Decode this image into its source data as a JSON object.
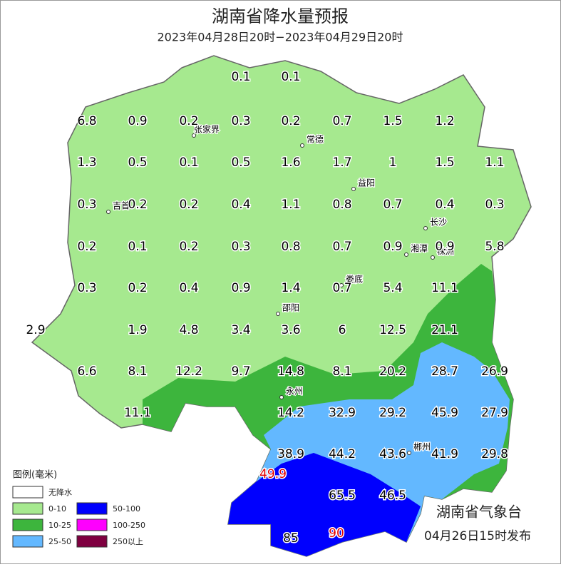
{
  "header": {
    "title": "湖南省降水量预报",
    "subtitle": "2023年04月28日20时−2023年04月29日20时"
  },
  "cities": [
    "张家界",
    "常德",
    "益阳",
    "吉首",
    "长沙",
    "湘潭",
    "株洲",
    "娄底",
    "邵阳",
    "永州",
    "郴州"
  ],
  "stations": [
    {
      "value": 0.1
    },
    {
      "value": 0.1
    },
    {
      "value": 6.8
    },
    {
      "value": 0.9
    },
    {
      "value": 0.2
    },
    {
      "value": 0.3
    },
    {
      "value": 0.2
    },
    {
      "value": 0.7
    },
    {
      "value": 1.5
    },
    {
      "value": 1.2
    },
    {
      "value": 1.3
    },
    {
      "value": 0.5
    },
    {
      "value": 0.1
    },
    {
      "value": 0.5
    },
    {
      "value": 1.6
    },
    {
      "value": 1.7
    },
    {
      "value": 1
    },
    {
      "value": 1.5
    },
    {
      "value": 1.1
    },
    {
      "value": 0.3
    },
    {
      "value": 0.2
    },
    {
      "value": 0.2
    },
    {
      "value": 0.4
    },
    {
      "value": 1.1
    },
    {
      "value": 0.8
    },
    {
      "value": 0.7
    },
    {
      "value": 0.4
    },
    {
      "value": 0.3
    },
    {
      "value": 0.2
    },
    {
      "value": 0.1
    },
    {
      "value": 0.2
    },
    {
      "value": 0.3
    },
    {
      "value": 0.8
    },
    {
      "value": 0.7
    },
    {
      "value": 0.9
    },
    {
      "value": 0.9
    },
    {
      "value": 5.8
    },
    {
      "value": 0.3
    },
    {
      "value": 0.2
    },
    {
      "value": 0.4
    },
    {
      "value": 0.9
    },
    {
      "value": 1.4
    },
    {
      "value": 0.7
    },
    {
      "value": 5.4
    },
    {
      "value": 11.1
    },
    {
      "value": 2.9
    },
    {
      "value": 1.9
    },
    {
      "value": 4.8
    },
    {
      "value": 3.4
    },
    {
      "value": 3.6
    },
    {
      "value": 6
    },
    {
      "value": 12.5
    },
    {
      "value": 21.1
    },
    {
      "value": 6.6
    },
    {
      "value": 8.1
    },
    {
      "value": 12.2
    },
    {
      "value": 9.7
    },
    {
      "value": 14.8
    },
    {
      "value": 8.1
    },
    {
      "value": 20.2
    },
    {
      "value": 28.7
    },
    {
      "value": 26.9
    },
    {
      "value": 11.1
    },
    {
      "value": 14.2
    },
    {
      "value": 32.9
    },
    {
      "value": 29.2
    },
    {
      "value": 45.9
    },
    {
      "value": 27.9
    },
    {
      "value": 38.9
    },
    {
      "value": 44.2
    },
    {
      "value": 43.6
    },
    {
      "value": 41.9
    },
    {
      "value": 29.8
    },
    {
      "value": 49.9,
      "color": "#e00000"
    },
    {
      "value": 65.5
    },
    {
      "value": 46.5
    },
    {
      "value": 85
    },
    {
      "value": 90,
      "color": "#e00000"
    }
  ],
  "legend": {
    "title": "图例(毫米)",
    "items": [
      {
        "label": "无降水",
        "color": "#ffffff"
      },
      {
        "label": "0-10",
        "color": "#a6e98f"
      },
      {
        "label": "10-25",
        "color": "#3db53d"
      },
      {
        "label": "25-50",
        "color": "#63b8ff"
      },
      {
        "label": "50-100",
        "color": "#0000fe"
      },
      {
        "label": "100-250",
        "color": "#fe00fe"
      },
      {
        "label": "250以上",
        "color": "#7f0040"
      }
    ]
  },
  "footer": {
    "agency": "湖南省气象台",
    "issued": "04月26日15时发布"
  }
}
